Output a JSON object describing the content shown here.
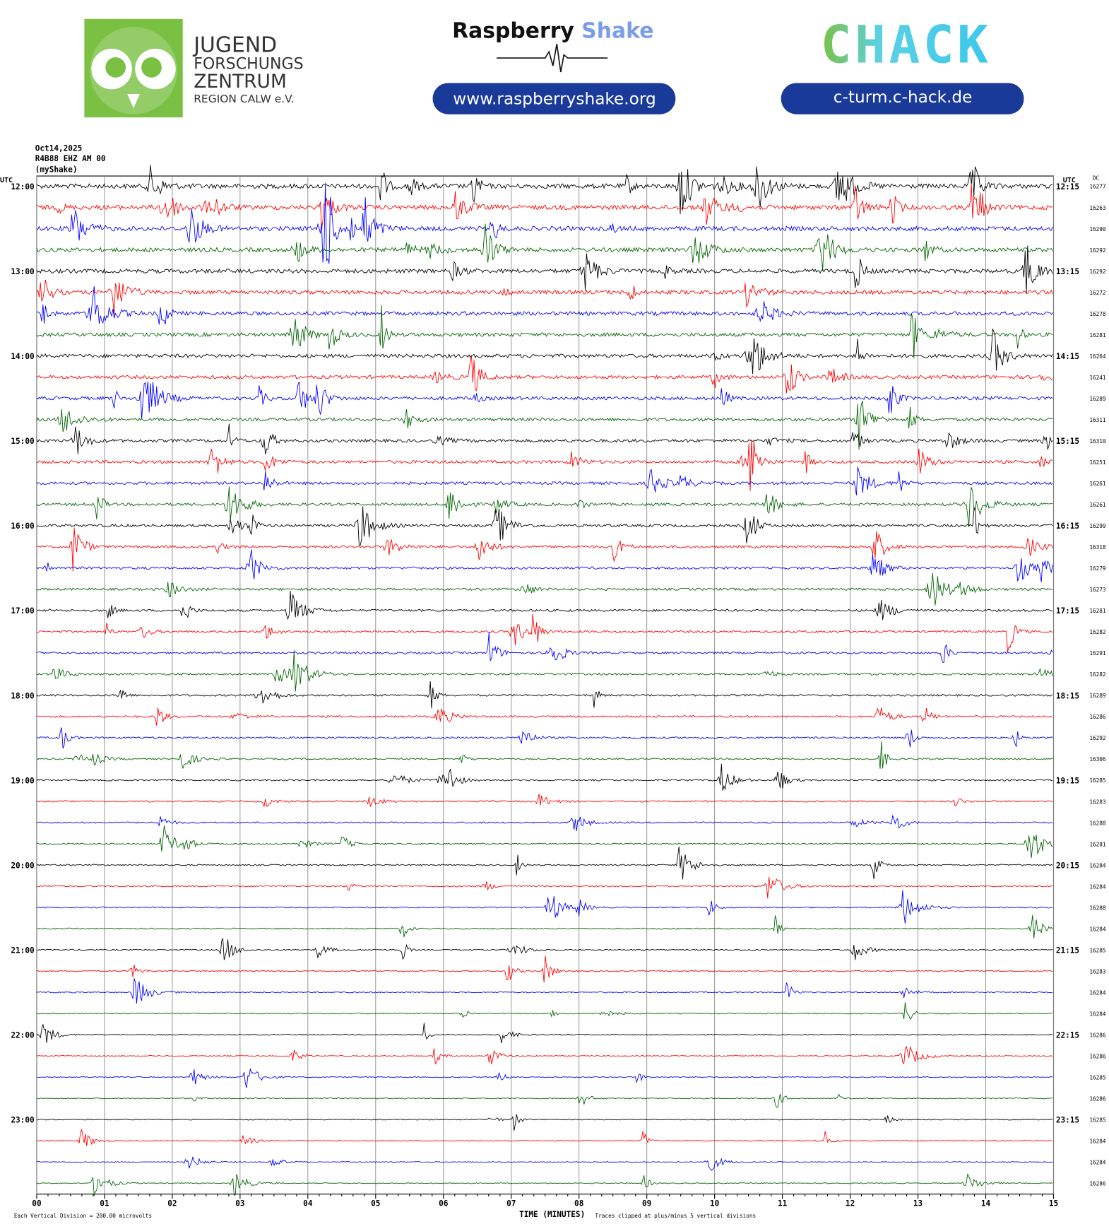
{
  "header": {
    "org_line1": "JUGEND",
    "org_line2": "FORSCHUNGS",
    "org_line3": "ZENTRUM",
    "org_line4": "REGION CALW e.V.",
    "brand_a": "Raspberry",
    "brand_b": "Shake",
    "brand_url": "www.raspberryshake.org",
    "hack_logo": "CHACK",
    "hack_url": "c-turm.c-hack.de"
  },
  "plot": {
    "date": "Oct14,2025",
    "station": "R4B88 EHZ AM 00",
    "source": "(myShake)",
    "utc_left": "UTC",
    "utc_right": "UTC",
    "dc_label": "DC",
    "left_labels": [
      "12:00",
      "13:00",
      "14:00",
      "15:00",
      "16:00",
      "17:00",
      "18:00",
      "19:00",
      "20:00",
      "21:00",
      "22:00",
      "23:00"
    ],
    "right_labels": [
      "12:15",
      "13:15",
      "14:15",
      "15:15",
      "16:15",
      "17:15",
      "18:15",
      "19:15",
      "20:15",
      "21:15",
      "22:15",
      "23:15"
    ],
    "dc_values": [
      16277,
      16263,
      16290,
      16292,
      16292,
      16272,
      16278,
      16281,
      16264,
      16241,
      16289,
      16311,
      16310,
      16251,
      16261,
      16261,
      16299,
      16318,
      16279,
      16273,
      16281,
      16282,
      16291,
      16282,
      16289,
      16286,
      16292,
      16306,
      16285,
      16283,
      16288,
      16281,
      16284,
      16284,
      16288,
      16284,
      16285,
      16283,
      16284,
      16284,
      16286,
      16286,
      16285,
      16286,
      16285,
      16284,
      16284,
      16286
    ],
    "trace_colors": [
      "#000000",
      "#ff0000",
      "#0000ff",
      "#006400"
    ],
    "x_ticks": [
      "00",
      "01",
      "02",
      "03",
      "04",
      "05",
      "06",
      "07",
      "08",
      "09",
      "10",
      "11",
      "12",
      "13",
      "14",
      "15"
    ],
    "x_label": "TIME (MINUTES)",
    "footer_left": "Each Vertical Division =  200.00 microvolts",
    "footer_right": "Traces clipped at plus/minus 5 vertical divisions"
  }
}
